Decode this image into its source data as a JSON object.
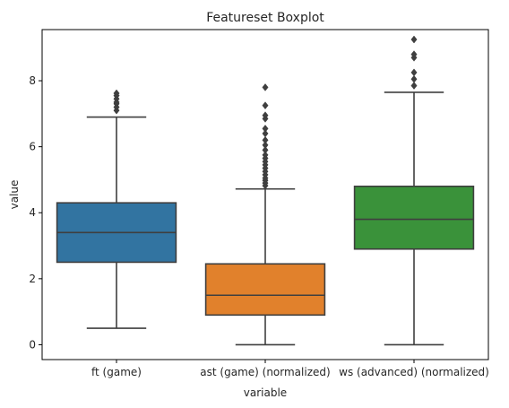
{
  "chart_data": {
    "type": "boxplot",
    "title": "Featureset Boxplot",
    "xlabel": "variable",
    "ylabel": "value",
    "ylim": [
      -0.45,
      9.55
    ],
    "yticks": [
      "0",
      "2",
      "4",
      "6",
      "8"
    ],
    "grid": false,
    "categories": [
      "ft (game)",
      "ast (game) (normalized)",
      "ws (advanced) (normalized)"
    ],
    "boxes": [
      {
        "category": "ft (game)",
        "color": "#3274a1",
        "whisker_low": 0.5,
        "q1": 2.5,
        "median": 3.4,
        "q3": 4.3,
        "whisker_high": 6.9,
        "outliers": [
          7.1,
          7.2,
          7.3,
          7.35,
          7.45,
          7.55,
          7.62
        ]
      },
      {
        "category": "ast (game) (normalized)",
        "color": "#e1812c",
        "whisker_low": 0.0,
        "q1": 0.9,
        "median": 1.5,
        "q3": 2.45,
        "whisker_high": 4.72,
        "outliers": [
          4.82,
          4.9,
          4.98,
          5.05,
          5.15,
          5.25,
          5.35,
          5.45,
          5.55,
          5.65,
          5.75,
          5.9,
          6.05,
          6.2,
          6.4,
          6.55,
          6.85,
          6.95,
          7.25,
          7.8
        ]
      },
      {
        "category": "ws (advanced) (normalized)",
        "color": "#3a923a",
        "whisker_low": 0.0,
        "q1": 2.9,
        "median": 3.8,
        "q3": 4.8,
        "whisker_high": 7.65,
        "outliers": [
          7.85,
          8.05,
          8.25,
          8.7,
          8.8,
          9.25
        ]
      }
    ]
  }
}
